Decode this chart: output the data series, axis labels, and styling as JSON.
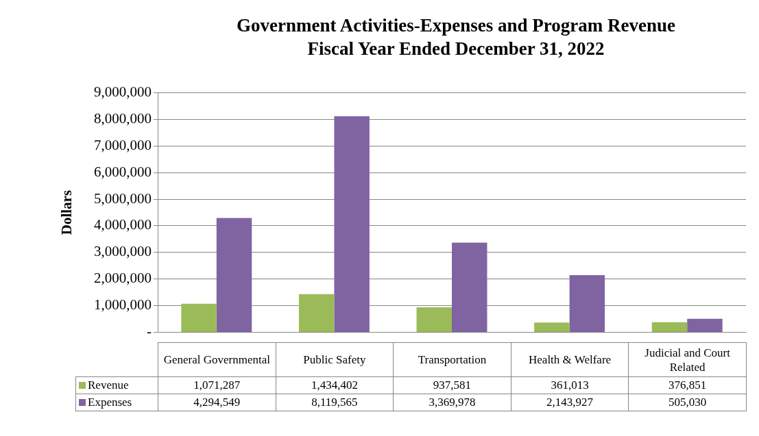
{
  "chart_data": {
    "type": "bar",
    "title": "Government Activities-Expenses and Program Revenue",
    "subtitle": "Fiscal Year Ended December 31, 2022",
    "ylabel": "Dollars",
    "categories": [
      "General Governmental",
      "Public Safety",
      "Transportation",
      "Health & Welfare",
      "Judicial and Court Related"
    ],
    "series": [
      {
        "name": "Revenue",
        "color": "#9bbb59",
        "values": [
          1071287,
          1434402,
          937581,
          361013,
          376851
        ],
        "value_labels": [
          "1,071,287",
          "1,434,402",
          "937,581",
          "361,013",
          "376,851"
        ]
      },
      {
        "name": "Expenses",
        "color": "#8064a2",
        "values": [
          4294549,
          8119565,
          3369978,
          2143927,
          505030
        ],
        "value_labels": [
          "4,294,549",
          "8,119,565",
          "3,369,978",
          "2,143,927",
          "505,030"
        ]
      }
    ],
    "ylim": [
      0,
      9000000
    ],
    "yticks": [
      {
        "value": 0,
        "label": "-"
      },
      {
        "value": 1000000,
        "label": "1,000,000"
      },
      {
        "value": 2000000,
        "label": "2,000,000"
      },
      {
        "value": 3000000,
        "label": "3,000,000"
      },
      {
        "value": 4000000,
        "label": "4,000,000"
      },
      {
        "value": 5000000,
        "label": "5,000,000"
      },
      {
        "value": 6000000,
        "label": "6,000,000"
      },
      {
        "value": 7000000,
        "label": "7,000,000"
      },
      {
        "value": 8000000,
        "label": "8,000,000"
      },
      {
        "value": 9000000,
        "label": "9,000,000"
      }
    ],
    "grid": "y",
    "legend": "bottom"
  }
}
